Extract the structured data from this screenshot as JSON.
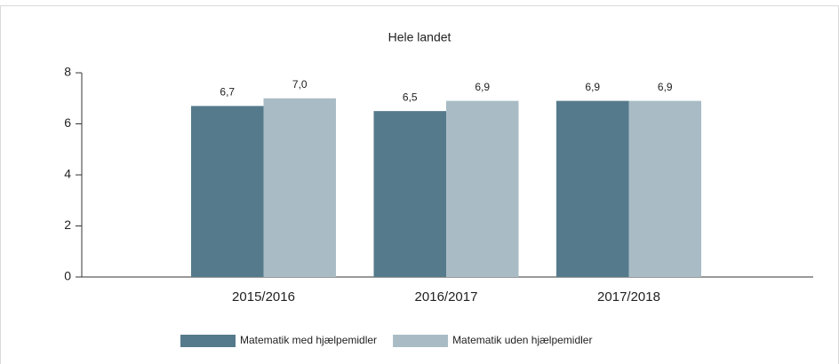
{
  "chart_data": {
    "type": "bar",
    "title": "Hele landet",
    "categories": [
      "2015/2016",
      "2016/2017",
      "2017/2018"
    ],
    "series": [
      {
        "name": "Matematik med hjælpemidler",
        "color": "#557a8b",
        "values": [
          6.7,
          6.5,
          6.9
        ],
        "value_labels": [
          "6,7",
          "6,5",
          "6,9"
        ]
      },
      {
        "name": "Matematik uden hjælpemidler",
        "color": "#a9bcc6",
        "values": [
          7.0,
          6.9,
          6.9
        ],
        "value_labels": [
          "7,0",
          "6,9",
          "6,9"
        ]
      }
    ],
    "ylim": [
      0,
      8
    ],
    "yticks": [
      0,
      2,
      4,
      6,
      8
    ],
    "legend": "bottom"
  }
}
